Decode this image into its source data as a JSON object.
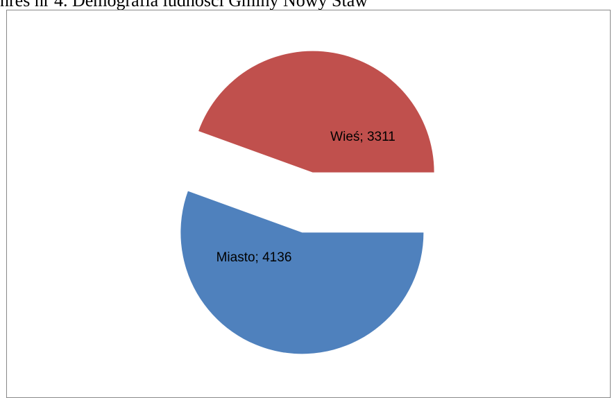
{
  "caption": "nres nr 4. Demografia ludności Gminy Nowy Staw",
  "chart_data": {
    "type": "pie",
    "title": "",
    "exploded": true,
    "slices": [
      {
        "label": "Wieś",
        "value": 3311,
        "color": "#c0504d",
        "data_label": "Wieś; 3311"
      },
      {
        "label": "Miasto",
        "value": 4136,
        "color": "#4f81bd",
        "data_label": "Miasto; 4136"
      }
    ]
  }
}
